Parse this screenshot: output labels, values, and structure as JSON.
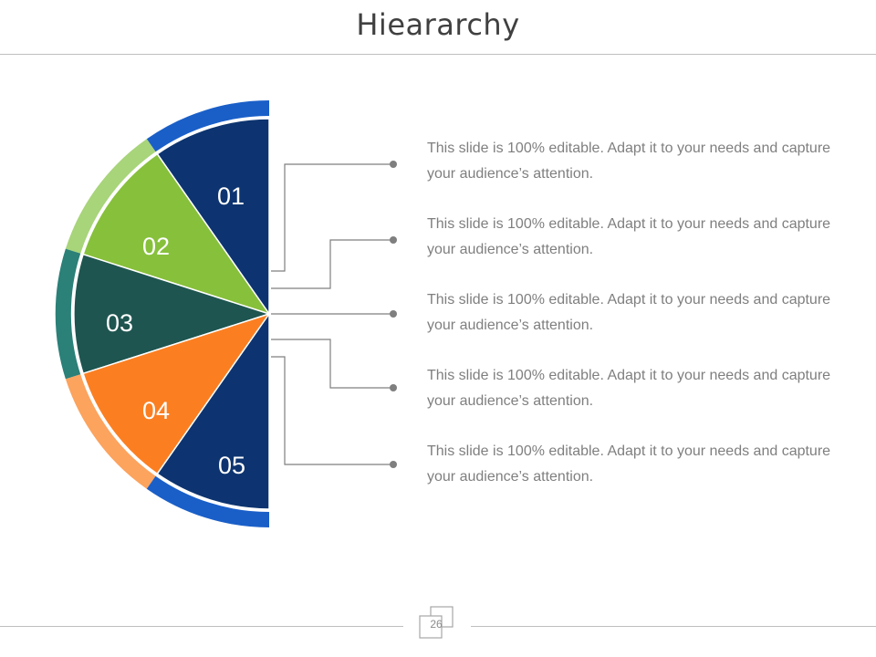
{
  "title": "Hieararchy",
  "page_number": "26",
  "colors": {
    "navy": "#0d3470",
    "navy_rim": "#1a5fc8",
    "green": "#87c03b",
    "green_rim": "#a8d47a",
    "teal": "#1e5550",
    "teal_rim": "#2b8078",
    "orange": "#fb7f21",
    "orange_rim": "#fca35e",
    "connector": "#7f7f7f"
  },
  "segments": [
    {
      "number": "01",
      "text": "This slide is 100% editable. Adapt it to your needs and capture your audience’s attention."
    },
    {
      "number": "02",
      "text": "This slide is 100% editable. Adapt it to your needs and capture your audience’s attention."
    },
    {
      "number": "03",
      "text": "This slide is 100% editable. Adapt it to your needs and capture your audience’s attention."
    },
    {
      "number": "04",
      "text": "This slide is 100% editable. Adapt it to your needs and capture your audience’s attention."
    },
    {
      "number": "05",
      "text": "This slide is 100% editable. Adapt it to your needs and capture your audience’s attention."
    }
  ]
}
